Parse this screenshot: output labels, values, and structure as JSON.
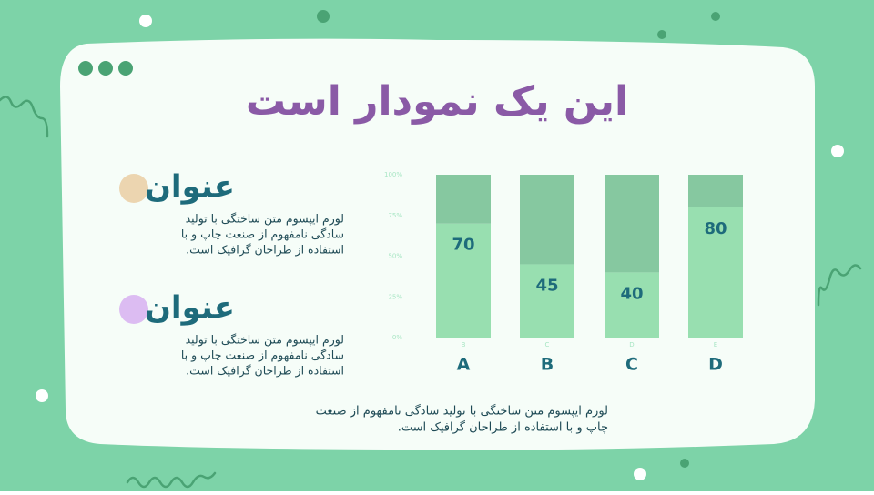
{
  "title": "این یک نمودار است",
  "sections": [
    {
      "heading": "عنوان",
      "lines": [
        "لورم ایپسوم متن ساختگی با تولید",
        "سادگی نامفهوم از صنعت چاپ و با",
        "استفاده از طراحان گرافیک است."
      ]
    },
    {
      "heading": "عنوان",
      "lines": [
        "لورم ایپسوم متن ساختگی با تولید",
        "سادگی نامفهوم از صنعت چاپ و با",
        "استفاده از طراحان گرافیک است."
      ]
    }
  ],
  "footer_lines": [
    "لورم ایپسوم متن ساختگی با تولید سادگی نامفهوم از صنعت",
    "چاپ و با استفاده از طراحان گرافیک است."
  ],
  "chart_data": {
    "type": "bar",
    "stacked": true,
    "categories": [
      "A",
      "B",
      "C",
      "D"
    ],
    "tick_labels": [
      "B",
      "C",
      "D",
      "E"
    ],
    "series": [
      {
        "color": "#98dfb0",
        "values": [
          70,
          45,
          40,
          80
        ]
      },
      {
        "color": "#86c8a0",
        "values": [
          30,
          55,
          60,
          20
        ]
      }
    ],
    "ylim": [
      0,
      100
    ],
    "yticks": [
      {
        "value": 0,
        "label": "0%"
      },
      {
        "value": 25,
        "label": "25%"
      },
      {
        "value": 50,
        "label": "50%"
      },
      {
        "value": 75,
        "label": "75%"
      },
      {
        "value": 100,
        "label": "100%"
      }
    ],
    "grid": false
  }
}
